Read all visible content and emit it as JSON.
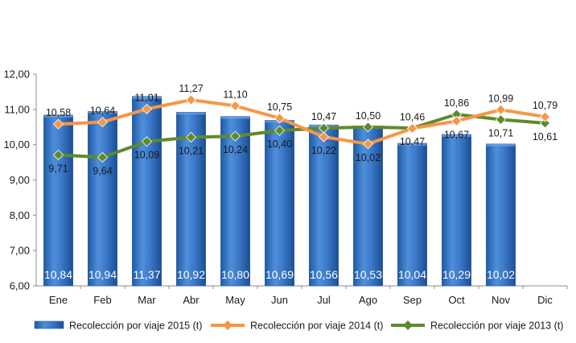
{
  "chart_data": {
    "type": "bar",
    "categories": [
      "Ene",
      "Feb",
      "Mar",
      "Abr",
      "May",
      "Jun",
      "Jul",
      "Ago",
      "Sep",
      "Oct",
      "Nov",
      "Dic"
    ],
    "series": [
      {
        "name": "Recolección por viaje 2015 (t)",
        "type": "bar",
        "color": "#2f6fc0",
        "values": [
          10.84,
          10.94,
          11.37,
          10.92,
          10.8,
          10.69,
          10.56,
          10.53,
          10.04,
          10.29,
          10.02,
          null
        ],
        "labels": [
          "10,84",
          "10,94",
          "11,37",
          "10,92",
          "10,80",
          "10,69",
          "10,56",
          "10,53",
          "10,04",
          "10,29",
          "10,02",
          ""
        ]
      },
      {
        "name": "Recolección por viaje 2014 (t)",
        "type": "line",
        "color": "#f79646",
        "values": [
          10.58,
          10.64,
          11.01,
          11.27,
          11.1,
          10.75,
          10.22,
          10.02,
          10.46,
          10.67,
          10.99,
          10.79
        ],
        "labels": [
          "10,58",
          "10,64",
          "11,01",
          "11,27",
          "11,10",
          "10,75",
          "10,22",
          "10,02",
          "10,46",
          "10,67",
          "10,99",
          "10,79"
        ]
      },
      {
        "name": "Recolección por viaje 2013 (t)",
        "type": "line",
        "color": "#5e8a2c",
        "values": [
          9.71,
          9.64,
          10.09,
          10.21,
          10.24,
          10.4,
          10.47,
          10.5,
          10.47,
          10.86,
          10.71,
          10.61
        ],
        "labels": [
          "9,71",
          "9,64",
          "10,09",
          "10,21",
          "10,24",
          "10,40",
          "10,47",
          "10,50",
          "10,47",
          "10,86",
          "10,71",
          "10,61"
        ]
      }
    ],
    "ylim": [
      6,
      12
    ],
    "yticks": [
      "6,00",
      "7,00",
      "8,00",
      "9,00",
      "10,00",
      "11,00",
      "12,00"
    ],
    "grid": false,
    "legend_position": "bottom"
  }
}
